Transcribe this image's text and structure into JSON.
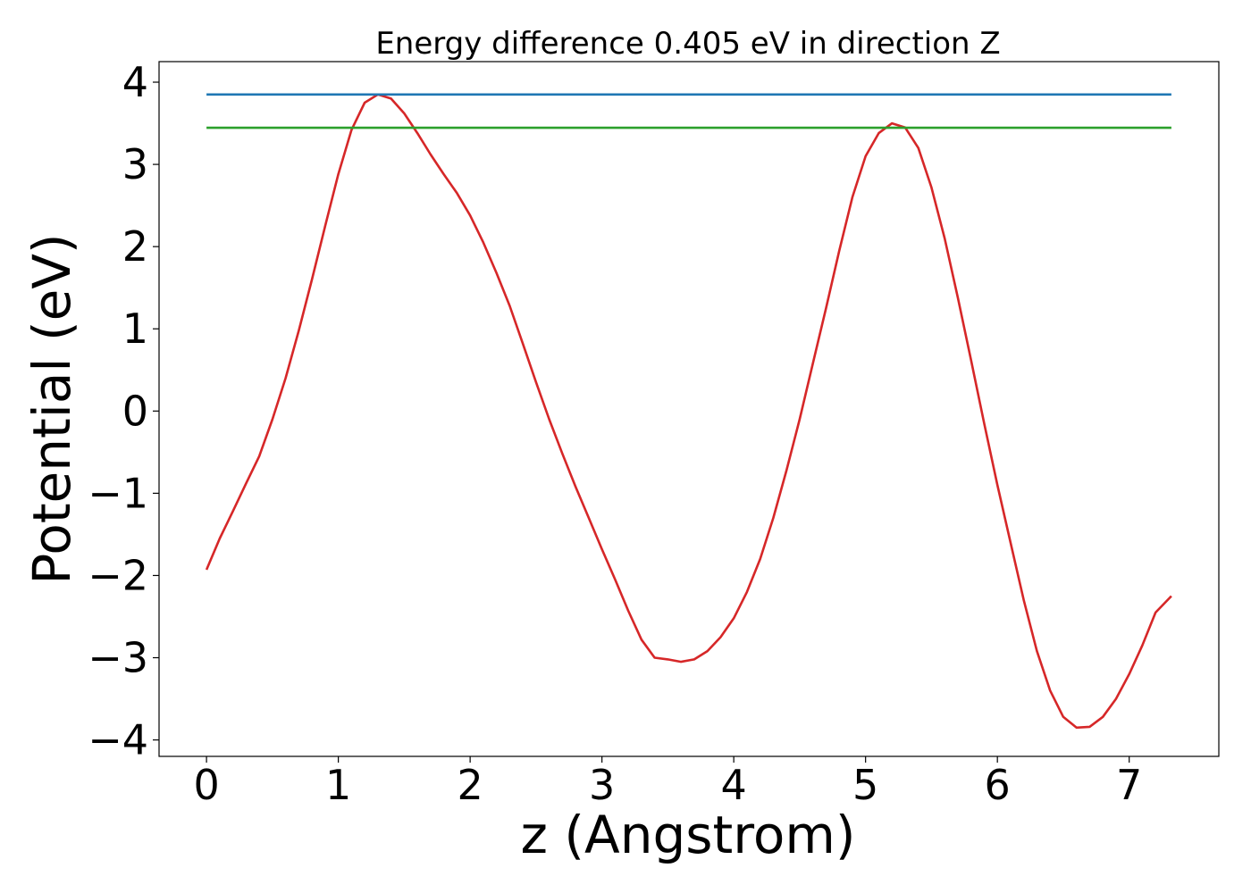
{
  "chart_data": {
    "type": "line",
    "title": "Energy difference 0.405 eV in direction Z",
    "xlabel": "z (Angstrom)",
    "ylabel": "Potential (eV)",
    "xlim": [
      -0.36,
      7.68
    ],
    "ylim": [
      -4.2,
      4.25
    ],
    "x_ticks": [
      0,
      1,
      2,
      3,
      4,
      5,
      6,
      7
    ],
    "x_tick_labels": [
      "0",
      "1",
      "2",
      "3",
      "4",
      "5",
      "6",
      "7"
    ],
    "y_ticks": [
      -4,
      -3,
      -2,
      -1,
      0,
      1,
      2,
      3,
      4
    ],
    "y_tick_labels": [
      "−4",
      "−3",
      "−2",
      "−1",
      "0",
      "1",
      "2",
      "3",
      "4"
    ],
    "grid": false,
    "legend": "none",
    "series": [
      {
        "color": "#d62728",
        "x": [
          0,
          0.1,
          0.2,
          0.3,
          0.4,
          0.5,
          0.6,
          0.7,
          0.8,
          0.9,
          1.0,
          1.1,
          1.2,
          1.3,
          1.4,
          1.5,
          1.6,
          1.7,
          1.8,
          1.9,
          2.0,
          2.1,
          2.2,
          2.3,
          2.4,
          2.5,
          2.6,
          2.7,
          2.8,
          2.9,
          3.0,
          3.1,
          3.2,
          3.3,
          3.4,
          3.5,
          3.6,
          3.7,
          3.8,
          3.9,
          4.0,
          4.1,
          4.2,
          4.3,
          4.4,
          4.5,
          4.6,
          4.7,
          4.8,
          4.9,
          5.0,
          5.1,
          5.2,
          5.3,
          5.4,
          5.5,
          5.6,
          5.7,
          5.8,
          5.9,
          6.0,
          6.1,
          6.2,
          6.3,
          6.4,
          6.5,
          6.6,
          6.7,
          6.8,
          6.9,
          7.0,
          7.1,
          7.2,
          7.32
        ],
        "y": [
          -1.93,
          -1.55,
          -1.22,
          -0.88,
          -0.55,
          -0.1,
          0.4,
          0.98,
          1.6,
          2.25,
          2.88,
          3.42,
          3.75,
          3.85,
          3.8,
          3.62,
          3.38,
          3.12,
          2.88,
          2.65,
          2.38,
          2.05,
          1.68,
          1.28,
          0.82,
          0.35,
          -0.1,
          -0.52,
          -0.92,
          -1.3,
          -1.68,
          -2.05,
          -2.43,
          -2.78,
          -3.0,
          -3.02,
          -3.05,
          -3.02,
          -2.92,
          -2.75,
          -2.52,
          -2.2,
          -1.8,
          -1.3,
          -0.72,
          -0.1,
          0.58,
          1.25,
          1.95,
          2.6,
          3.1,
          3.38,
          3.5,
          3.45,
          3.2,
          2.72,
          2.1,
          1.38,
          0.62,
          -0.15,
          -0.9,
          -1.6,
          -2.3,
          -2.92,
          -3.4,
          -3.72,
          -3.85,
          -3.84,
          -3.72,
          -3.5,
          -3.2,
          -2.85,
          -2.45,
          -2.25
        ]
      },
      {
        "color": "#1f77b4",
        "x": [
          0,
          7.32
        ],
        "y": [
          3.85,
          3.85
        ]
      },
      {
        "color": "#2ca02c",
        "x": [
          0,
          7.32
        ],
        "y": [
          3.445,
          3.445
        ]
      }
    ]
  }
}
